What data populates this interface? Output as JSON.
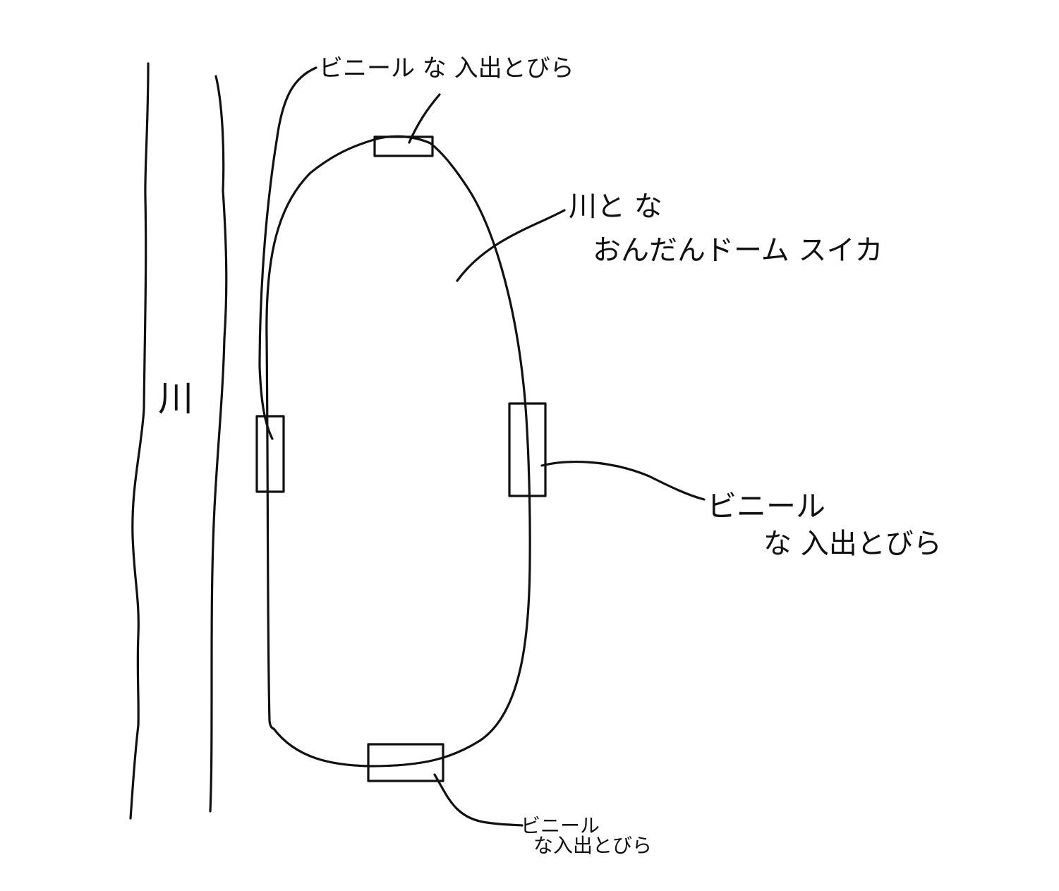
{
  "colors": {
    "ink": "#111111",
    "paper": "#ffffff"
  },
  "labels": {
    "river": "川",
    "dome_line1": "川と な",
    "dome_line2": "おんだんドーム スイカ",
    "door_top": "ビニール な 入出とびら",
    "door_right_line1": "ビニール",
    "door_right_line2": "な 入出とびら",
    "door_bottom_line1": "ビニール",
    "door_bottom_line2": "な入出とびら"
  }
}
